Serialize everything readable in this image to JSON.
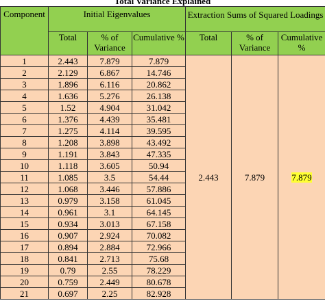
{
  "title": "Total Variance Explained",
  "headers": {
    "component": "Component",
    "initial": "Initial Eigenvalues",
    "extraction": "Extraction Sums of Squared Loadings",
    "sub": [
      "Total",
      "% of Variance",
      "Cumulative %",
      "Total",
      "% of Variance",
      "Cumulative %"
    ]
  },
  "rows": [
    [
      "1",
      "2.443",
      "7.879",
      "7.879"
    ],
    [
      "2",
      "2.129",
      "6.867",
      "14.746"
    ],
    [
      "3",
      "1.896",
      "6.116",
      "20.862"
    ],
    [
      "4",
      "1.636",
      "5.276",
      "26.138"
    ],
    [
      "5",
      "1.52",
      "4.904",
      "31.042"
    ],
    [
      "6",
      "1.376",
      "4.439",
      "35.481"
    ],
    [
      "7",
      "1.275",
      "4.114",
      "39.595"
    ],
    [
      "8",
      "1.208",
      "3.898",
      "43.492"
    ],
    [
      "9",
      "1.191",
      "3.843",
      "47.335"
    ],
    [
      "10",
      "1.118",
      "3.605",
      "50.94"
    ],
    [
      "11",
      "1.085",
      "3.5",
      "54.44"
    ],
    [
      "12",
      "1.068",
      "3.446",
      "57.886"
    ],
    [
      "13",
      "0.979",
      "3.158",
      "61.045"
    ],
    [
      "14",
      "0.961",
      "3.1",
      "64.145"
    ],
    [
      "15",
      "0.934",
      "3.013",
      "67.158"
    ],
    [
      "16",
      "0.907",
      "2.924",
      "70.082"
    ],
    [
      "17",
      "0.894",
      "2.884",
      "72.966"
    ],
    [
      "18",
      "0.841",
      "2.713",
      "75.68"
    ],
    [
      "19",
      "0.79",
      "2.55",
      "78.229"
    ],
    [
      "20",
      "0.759",
      "2.449",
      "80.678"
    ],
    [
      "21",
      "0.697",
      "2.25",
      "82.928"
    ]
  ],
  "extraction": [
    "2.443",
    "7.879",
    "7.879"
  ]
}
